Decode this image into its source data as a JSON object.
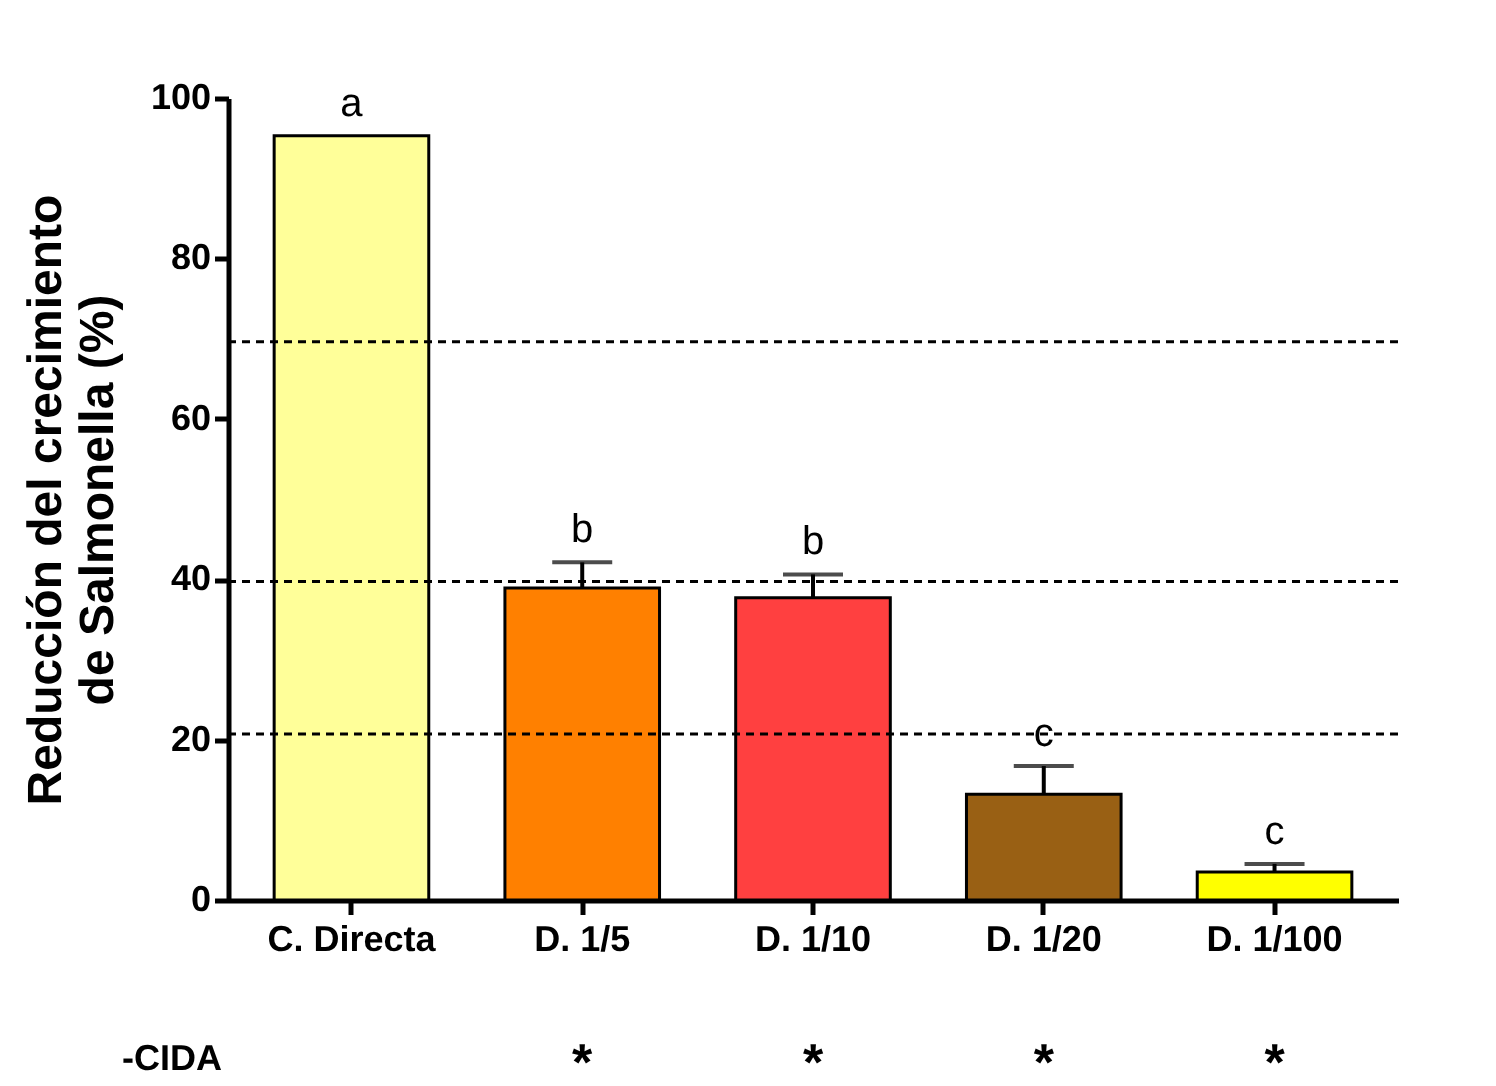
{
  "chart_data": {
    "type": "bar",
    "ylabel": "Reducción del crecimiento\nde Salmonella (%)",
    "categories": [
      "C. Directa",
      "D. 1/5",
      "D. 1/10",
      "D. 1/20",
      "D. 1/100"
    ],
    "values": [
      95.3,
      38.9,
      37.7,
      13.2,
      3.5
    ],
    "errors": [
      null,
      3.2,
      2.9,
      3.5,
      1.0
    ],
    "colors": [
      "#ffff99",
      "#ff8000",
      "#ff4040",
      "#996014",
      "#ffff00"
    ],
    "ylim": [
      0,
      100
    ],
    "yticks": [
      0,
      20,
      40,
      60,
      80,
      100
    ],
    "grid": false,
    "legend": false,
    "ref_lines": [
      {
        "axis": "y",
        "value": 69.6,
        "color": "#000000",
        "line_style": "dashed"
      },
      {
        "axis": "y",
        "value": 39.7,
        "color": "#000000",
        "line_style": "dashed"
      },
      {
        "axis": "y",
        "value": 20.7,
        "color": "#000000",
        "line_style": "dashed"
      }
    ],
    "annotations": [
      {
        "text": "a",
        "x": "C. Directa",
        "y": 95.3
      },
      {
        "text": "b",
        "x": "D. 1/5",
        "y": 42.1
      },
      {
        "text": "b",
        "x": "D. 1/10",
        "y": 40.6
      },
      {
        "text": "c",
        "x": "D. 1/20",
        "y": 16.7
      },
      {
        "text": "c",
        "x": "D. 1/100",
        "y": 4.5
      },
      "-CIDA",
      "*",
      "*",
      "*",
      "*"
    ]
  }
}
